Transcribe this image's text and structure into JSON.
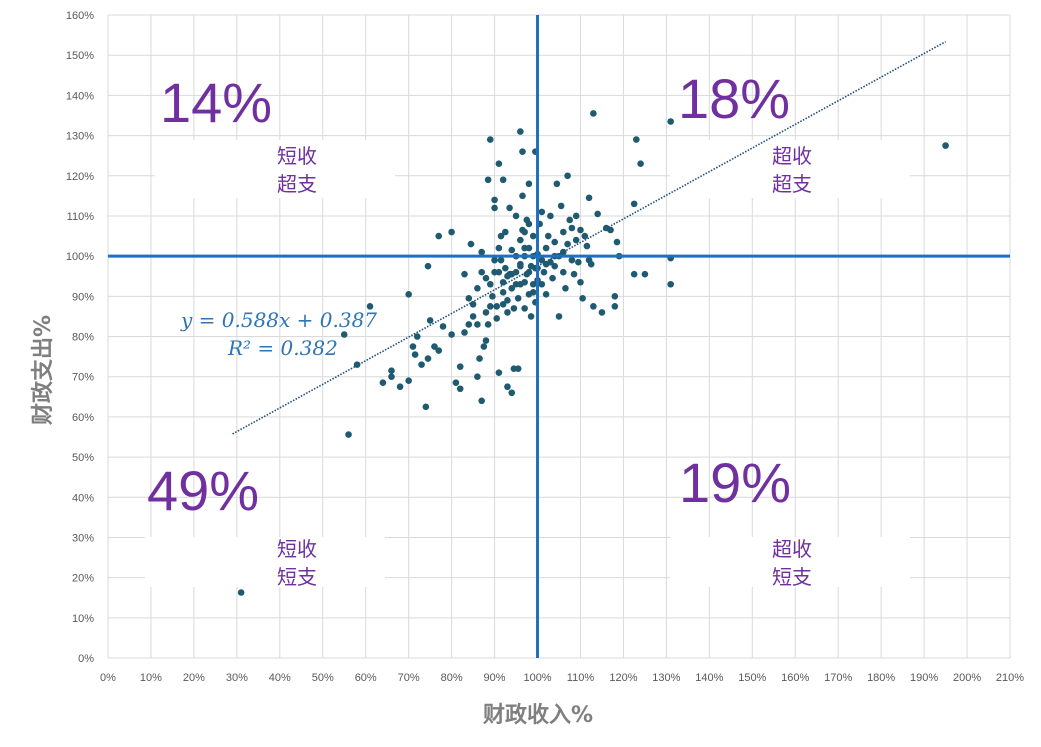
{
  "chart_data": {
    "type": "scatter",
    "title": "",
    "xlabel": "财政收入%",
    "ylabel": "财政支出%",
    "xlim": [
      0,
      2.1
    ],
    "ylim": [
      0,
      1.6
    ],
    "x_ticks": [
      "0%",
      "10%",
      "20%",
      "30%",
      "40%",
      "50%",
      "60%",
      "70%",
      "80%",
      "90%",
      "100%",
      "110%",
      "120%",
      "130%",
      "140%",
      "150%",
      "160%",
      "170%",
      "180%",
      "190%",
      "200%",
      "210%"
    ],
    "y_ticks": [
      "0%",
      "10%",
      "20%",
      "30%",
      "40%",
      "50%",
      "60%",
      "70%",
      "80%",
      "90%",
      "100%",
      "110%",
      "120%",
      "130%",
      "140%",
      "150%",
      "160%"
    ],
    "grid": true,
    "reference_lines": {
      "x": 1.0,
      "y": 1.0,
      "color": "#1f6fbf"
    },
    "trendline": {
      "slope": 0.588,
      "intercept": 0.387,
      "x_range": [
        0.29,
        1.95
      ],
      "color": "#1f4e79"
    },
    "equation_line1": "y = 0.588x + 0.387",
    "equation_line2": "R² = 0.382",
    "quadrants": [
      {
        "pct": "14%",
        "line1": "短收",
        "line2": "超支"
      },
      {
        "pct": "18%",
        "line1": "超收",
        "line2": "超支"
      },
      {
        "pct": "49%",
        "line1": "短收",
        "line2": "短支"
      },
      {
        "pct": "19%",
        "line1": "超收",
        "line2": "短支"
      }
    ],
    "marker_color": "#1f5a70",
    "points": [
      [
        0.31,
        0.163
      ],
      [
        0.56,
        0.556
      ],
      [
        0.58,
        0.73
      ],
      [
        0.55,
        0.805
      ],
      [
        0.61,
        0.875
      ],
      [
        0.64,
        0.685
      ],
      [
        0.66,
        0.7
      ],
      [
        0.66,
        0.715
      ],
      [
        0.68,
        0.675
      ],
      [
        0.7,
        0.69
      ],
      [
        0.7,
        0.905
      ],
      [
        0.71,
        0.775
      ],
      [
        0.715,
        0.755
      ],
      [
        0.72,
        0.8
      ],
      [
        0.73,
        0.73
      ],
      [
        0.74,
        0.625
      ],
      [
        0.745,
        0.745
      ],
      [
        0.745,
        0.975
      ],
      [
        0.75,
        0.84
      ],
      [
        0.76,
        0.775
      ],
      [
        0.77,
        0.765
      ],
      [
        0.78,
        0.825
      ],
      [
        0.77,
        1.05
      ],
      [
        0.8,
        1.06
      ],
      [
        0.8,
        0.805
      ],
      [
        0.81,
        0.685
      ],
      [
        0.82,
        0.67
      ],
      [
        0.82,
        0.725
      ],
      [
        0.83,
        0.81
      ],
      [
        0.83,
        0.955
      ],
      [
        0.84,
        0.83
      ],
      [
        0.84,
        0.895
      ],
      [
        0.845,
        1.03
      ],
      [
        0.85,
        0.85
      ],
      [
        0.85,
        0.88
      ],
      [
        0.86,
        0.92
      ],
      [
        0.86,
        0.83
      ],
      [
        0.86,
        0.7
      ],
      [
        0.865,
        0.745
      ],
      [
        0.87,
        0.64
      ],
      [
        0.87,
        0.96
      ],
      [
        0.87,
        1.01
      ],
      [
        0.875,
        0.775
      ],
      [
        0.88,
        0.79
      ],
      [
        0.88,
        0.86
      ],
      [
        0.88,
        0.945
      ],
      [
        0.885,
        0.83
      ],
      [
        0.885,
        1.19
      ],
      [
        0.89,
        1.29
      ],
      [
        0.89,
        0.875
      ],
      [
        0.89,
        0.93
      ],
      [
        0.895,
        0.9
      ],
      [
        0.9,
        1.14
      ],
      [
        0.9,
        1.12
      ],
      [
        0.9,
        0.96
      ],
      [
        0.905,
        0.875
      ],
      [
        0.905,
        0.845
      ],
      [
        0.91,
        0.71
      ],
      [
        0.91,
        1.23
      ],
      [
        0.91,
        1.02
      ],
      [
        0.915,
        1.05
      ],
      [
        0.915,
        0.99
      ],
      [
        0.92,
        0.91
      ],
      [
        0.92,
        0.935
      ],
      [
        0.92,
        1.19
      ],
      [
        0.925,
        1.06
      ],
      [
        0.925,
        0.97
      ],
      [
        0.93,
        0.675
      ],
      [
        0.93,
        0.86
      ],
      [
        0.93,
        0.89
      ],
      [
        0.935,
        0.955
      ],
      [
        0.935,
        1.12
      ],
      [
        0.94,
        0.66
      ],
      [
        0.94,
        0.955
      ],
      [
        0.94,
        1.015
      ],
      [
        0.945,
        0.72
      ],
      [
        0.945,
        0.87
      ],
      [
        0.95,
        0.96
      ],
      [
        0.95,
        1.0
      ],
      [
        0.95,
        1.1
      ],
      [
        0.955,
        0.72
      ],
      [
        0.955,
        0.895
      ],
      [
        0.96,
        1.31
      ],
      [
        0.96,
        0.93
      ],
      [
        0.96,
        0.975
      ],
      [
        0.965,
        1.26
      ],
      [
        0.965,
        1.15
      ],
      [
        0.965,
        1.065
      ],
      [
        0.97,
        0.87
      ],
      [
        0.97,
        0.935
      ],
      [
        0.97,
        1.0
      ],
      [
        0.975,
        0.955
      ],
      [
        0.975,
        1.09
      ],
      [
        0.98,
        1.18
      ],
      [
        0.98,
        0.905
      ],
      [
        0.98,
        1.02
      ],
      [
        0.985,
        0.85
      ],
      [
        0.985,
        0.975
      ],
      [
        0.99,
        0.93
      ],
      [
        0.99,
        1.05
      ],
      [
        0.995,
        0.885
      ],
      [
        0.995,
        1.26
      ],
      [
        0.995,
        0.97
      ],
      [
        1.0,
        1.005
      ],
      [
        1.0,
        0.94
      ],
      [
        1.005,
        1.08
      ],
      [
        1.01,
        0.99
      ],
      [
        1.01,
        1.11
      ],
      [
        1.015,
        0.96
      ],
      [
        1.02,
        1.02
      ],
      [
        1.02,
        0.905
      ],
      [
        1.025,
        1.05
      ],
      [
        1.03,
        0.985
      ],
      [
        1.03,
        1.1
      ],
      [
        1.035,
        0.945
      ],
      [
        1.04,
        1.035
      ],
      [
        1.04,
        0.975
      ],
      [
        1.045,
        1.18
      ],
      [
        1.05,
        0.85
      ],
      [
        1.05,
        1.0
      ],
      [
        1.055,
        1.125
      ],
      [
        1.06,
        1.06
      ],
      [
        1.06,
        0.96
      ],
      [
        1.065,
        0.92
      ],
      [
        1.07,
        1.2
      ],
      [
        1.07,
        1.03
      ],
      [
        1.075,
        1.09
      ],
      [
        1.08,
        0.99
      ],
      [
        1.085,
        0.955
      ],
      [
        1.09,
        1.1
      ],
      [
        1.09,
        1.04
      ],
      [
        1.095,
        0.985
      ],
      [
        1.1,
        0.935
      ],
      [
        1.1,
        1.065
      ],
      [
        1.105,
        0.895
      ],
      [
        1.11,
        1.05
      ],
      [
        1.115,
        1.025
      ],
      [
        1.12,
        0.99
      ],
      [
        1.12,
        1.145
      ],
      [
        1.125,
        0.98
      ],
      [
        1.13,
        1.355
      ],
      [
        1.13,
        0.875
      ],
      [
        1.14,
        1.105
      ],
      [
        1.15,
        0.86
      ],
      [
        1.16,
        1.07
      ],
      [
        1.17,
        1.065
      ],
      [
        1.18,
        0.9
      ],
      [
        1.18,
        0.875
      ],
      [
        1.185,
        1.035
      ],
      [
        1.19,
        1.0
      ],
      [
        1.225,
        1.13
      ],
      [
        1.225,
        0.955
      ],
      [
        1.23,
        1.29
      ],
      [
        1.24,
        1.23
      ],
      [
        1.25,
        0.955
      ],
      [
        1.31,
        1.335
      ],
      [
        1.31,
        0.995
      ],
      [
        1.31,
        0.93
      ],
      [
        1.95,
        1.275
      ],
      [
        0.97,
        1.02
      ],
      [
        0.99,
        0.91
      ],
      [
        1.0,
        0.97
      ],
      [
        0.96,
        1.04
      ],
      [
        0.98,
        0.96
      ],
      [
        1.02,
        0.98
      ],
      [
        0.94,
        0.92
      ],
      [
        0.92,
        0.88
      ],
      [
        0.9,
        0.99
      ],
      [
        1.06,
        1.01
      ],
      [
        1.08,
        1.07
      ],
      [
        0.96,
        0.98
      ],
      [
        0.93,
        0.95
      ],
      [
        0.97,
        1.06
      ],
      [
        1.01,
        0.93
      ],
      [
        1.04,
        1.0
      ],
      [
        0.95,
        0.93
      ],
      [
        0.98,
        1.08
      ],
      [
        0.91,
        0.96
      ],
      [
        0.99,
        1.0
      ]
    ]
  }
}
